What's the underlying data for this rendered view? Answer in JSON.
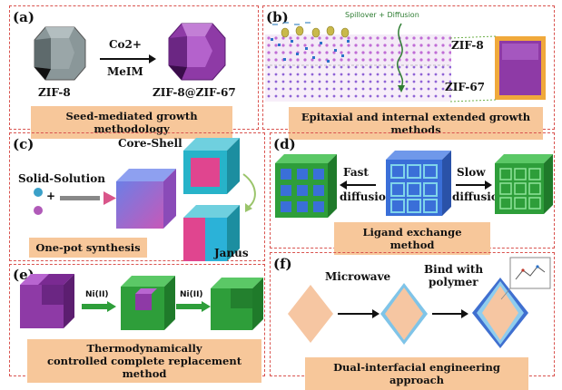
{
  "panels": {
    "a": {
      "label": "(a)",
      "reagent_top": "Co2+",
      "reagent_bottom": "MeIM",
      "left_name": "ZIF-8",
      "right_name": "ZIF-8@ZIF-67",
      "caption": "Seed-mediated growth methodology"
    },
    "b": {
      "label": "(b)",
      "spillover": "Spillover + Diffusion",
      "zif8": "ZIF-8",
      "zif67": "ZIF-67",
      "caption": "Epitaxial and internal extended growth methods"
    },
    "c": {
      "label": "(c)",
      "core_shell": "Core-Shell",
      "solid_solution": "Solid-Solution",
      "janus": "Janus",
      "caption": "One-pot synthesis"
    },
    "d": {
      "label": "(d)",
      "fast": "Fast",
      "fast_diff": "diffusion",
      "slow": "Slow",
      "slow_diff": "diffusion",
      "caption": "Ligand exchange method"
    },
    "e": {
      "label": "(e)",
      "reagent1": "Ni(II)",
      "reagent2": "Ni(II)",
      "caption_line1": "Thermodynamically",
      "caption_line2": "controlled complete replacement method"
    },
    "f": {
      "label": "(f)",
      "microwave": "Microwave",
      "bind_line1": "Bind with",
      "bind_line2": "polymer",
      "caption": "Dual-interfacial engineering approach"
    }
  },
  "colors": {
    "border": "#d9534f",
    "caption_bg": "#f7c79a",
    "zif8_gray": "#7d8a8c",
    "zif67_purple": "#9b3fb0",
    "green": "#2e9e3a",
    "blue": "#3a6fd8",
    "peach": "#f6c6a2"
  }
}
